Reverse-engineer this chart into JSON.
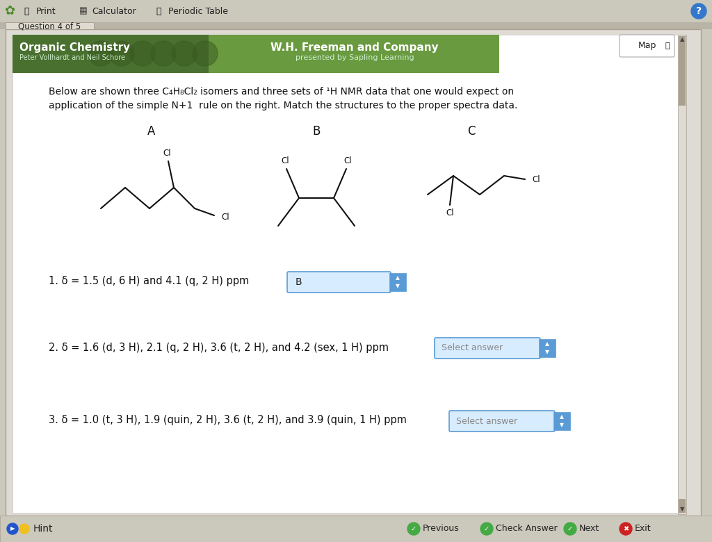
{
  "bg_color": "#cbc8bc",
  "content_bg": "#ffffff",
  "toolbar_bg": "#cbc8bc",
  "tab_bg": "#dedad0",
  "tab_text": "Question 4 of 5",
  "header_green_left": "#5a8a3f",
  "header_green_right": "#7aaa5a",
  "question_text_line1": "Below are shown three C₄H₈Cl₂ isomers and three sets of ¹H NMR data that one would expect on",
  "question_text_line2": "application of the simple N+1  rule on the right. Match the structures to the proper spectra data.",
  "label_A": "A",
  "label_B": "B",
  "label_C": "C",
  "nmr1": "1. δ = 1.5 (d, 6 H) and 4.1 (q, 2 H) ppm",
  "nmr2": "2. δ = 1.6 (d, 3 H), 2.1 (q, 2 H), 3.6 (t, 2 H), and 4.2 (sex, 1 H) ppm",
  "nmr3": "3. δ = 1.0 (t, 3 H), 1.9 (quin, 2 H), 3.6 (t, 2 H), and 3.9 (quin, 1 H) ppm",
  "answer1": "B",
  "answer2": "Select answer",
  "answer3": "Select answer",
  "box_fill": "#d8ecff",
  "box_border": "#5b9bd5",
  "box_arrow_fill": "#5b9bd5",
  "footer_bg": "#cbc8bc",
  "footer_hint": "Hint",
  "footer_buttons": [
    "Previous",
    "Check Answer",
    "Next",
    "Exit"
  ],
  "footer_btn_colors": [
    "#44aa44",
    "#44aa44",
    "#44aa44",
    "#cc2222"
  ],
  "toolbar_items": [
    "Print",
    "Calculator",
    "Periodic Table"
  ],
  "map_btn": "Map",
  "org_chem_title": "Organic Chemistry",
  "org_chem_subtitle": "Peter Vollhardt and Neil Schore",
  "publisher_title": "W.H. Freeman and Company",
  "publisher_subtitle": "presented by Sapling Learning"
}
